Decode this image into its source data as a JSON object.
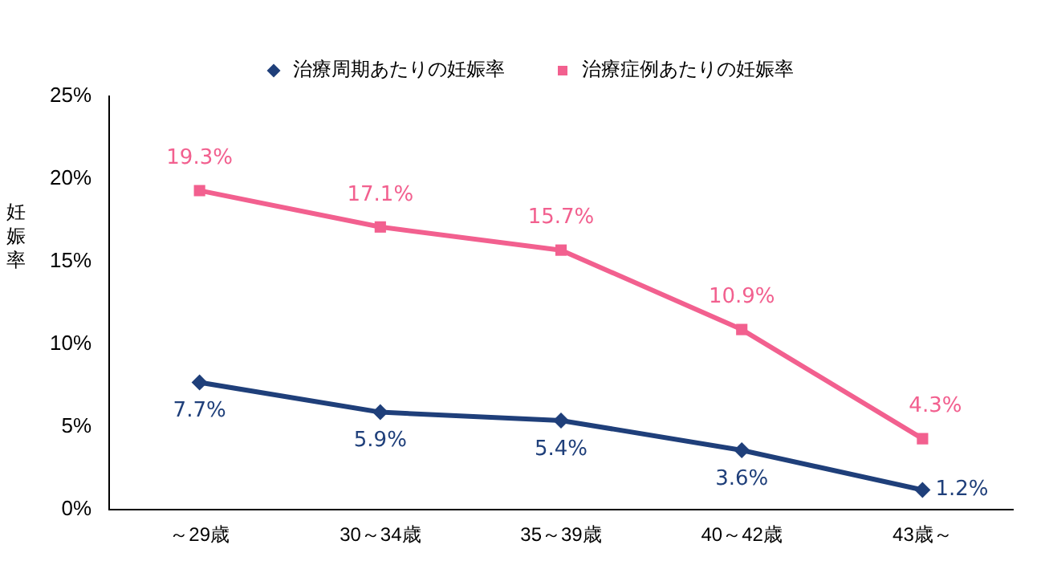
{
  "chart_data": {
    "type": "line",
    "ylabel": "妊娠率",
    "categories": [
      "～29歳",
      "30～34歳",
      "35～39歳",
      "40～42歳",
      "43歳～"
    ],
    "series": [
      {
        "name": "治療周期あたりの妊娠率",
        "color": "#1f3f7a",
        "marker": "diamond",
        "values": [
          7.7,
          5.9,
          5.4,
          3.6,
          1.2
        ],
        "value_labels": [
          "7.7%",
          "5.9%",
          "5.4%",
          "3.6%",
          "1.2%"
        ]
      },
      {
        "name": "治療症例あたりの妊娠率",
        "color": "#f2608f",
        "marker": "square",
        "values": [
          19.3,
          17.1,
          15.7,
          10.9,
          4.3
        ],
        "value_labels": [
          "19.3%",
          "17.1%",
          "15.7%",
          "10.9%",
          "4.3%"
        ]
      }
    ],
    "ylim": [
      0,
      25
    ],
    "yticks": [
      {
        "value": 0,
        "label": "0%"
      },
      {
        "value": 5,
        "label": "5%"
      },
      {
        "value": 10,
        "label": "10%"
      },
      {
        "value": 15,
        "label": "15%"
      },
      {
        "value": 20,
        "label": "20%"
      },
      {
        "value": 25,
        "label": "25%"
      }
    ],
    "grid": false,
    "legend": "top"
  }
}
